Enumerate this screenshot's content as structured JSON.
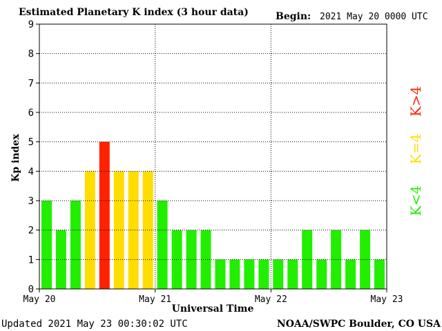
{
  "header": {
    "title": "Estimated Planetary K index (3 hour data)",
    "begin_label": "Begin:",
    "begin_value": "2021 May 20 0000 UTC"
  },
  "footer": {
    "updated": "Updated 2021 May 23 00:30:02 UTC",
    "source": "NOAA/SWPC Boulder, CO USA"
  },
  "legend": {
    "green": "K<4",
    "yellow": "K=4",
    "red": "K>4"
  },
  "colors": {
    "green": "#22ee00",
    "yellow": "#ffdd00",
    "red": "#ff2200"
  },
  "chart_data": {
    "type": "bar",
    "title": "Estimated Planetary K index (3 hour data)",
    "xlabel": "Universal Time",
    "ylabel": "Kp index",
    "ylim": [
      0,
      9
    ],
    "yticks": [
      "0",
      "1",
      "2",
      "3",
      "4",
      "5",
      "6",
      "7",
      "8",
      "9"
    ],
    "xticks": [
      "May 20",
      "May 21",
      "May 22",
      "May 23"
    ],
    "bins_per_day": 8,
    "days": 3,
    "values": [
      3,
      2,
      3,
      4,
      5,
      4,
      4,
      4,
      3,
      2,
      2,
      2,
      1,
      1,
      1,
      1,
      1,
      1,
      2,
      1,
      2,
      1,
      2,
      1
    ],
    "grid": true
  }
}
